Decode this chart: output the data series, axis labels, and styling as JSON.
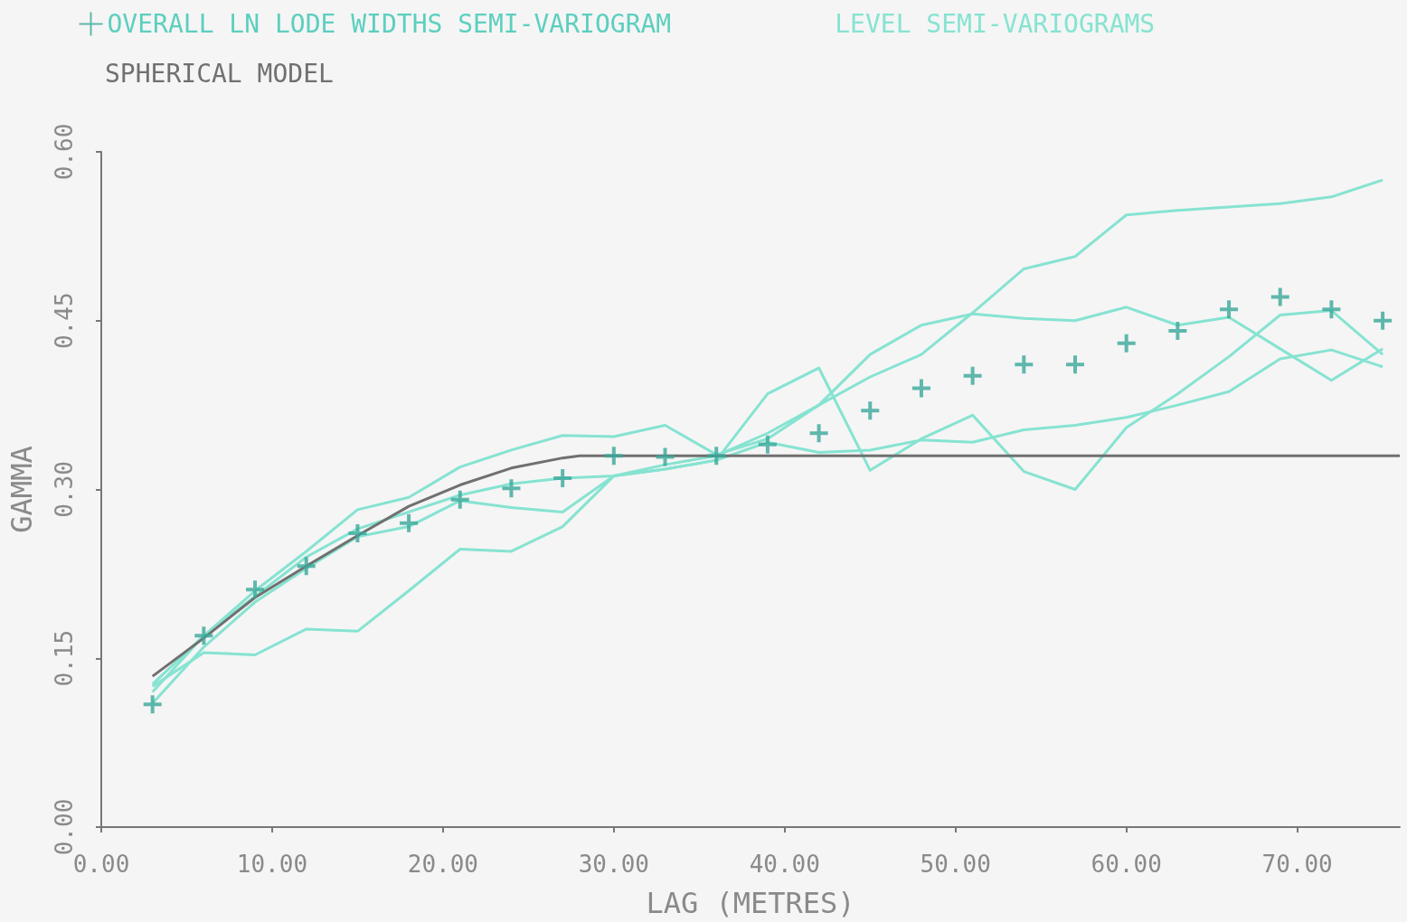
{
  "chart_data": {
    "type": "line",
    "xlabel": "LAG (METRES)",
    "ylabel": "GAMMA",
    "x": [
      3,
      6,
      9,
      12,
      15,
      18,
      21,
      24,
      27,
      30,
      33,
      36,
      39,
      42,
      45,
      48,
      51,
      54,
      57,
      60,
      63,
      66,
      69,
      72,
      75
    ],
    "xlim": [
      0,
      76
    ],
    "ylim": [
      0,
      0.6
    ],
    "xticks": [
      {
        "value": 0,
        "label": "0.00"
      },
      {
        "value": 10,
        "label": "10.00"
      },
      {
        "value": 20,
        "label": "20.00"
      },
      {
        "value": 30,
        "label": "30.00"
      },
      {
        "value": 40,
        "label": "40.00"
      },
      {
        "value": 50,
        "label": "50.00"
      },
      {
        "value": 60,
        "label": "60.00"
      },
      {
        "value": 70,
        "label": "70.00"
      }
    ],
    "yticks": [
      {
        "value": 0,
        "label": "0.00"
      },
      {
        "value": 0.15,
        "label": "0.15"
      },
      {
        "value": 0.3,
        "label": "0.30"
      },
      {
        "value": 0.45,
        "label": "0.45"
      },
      {
        "value": 0.6,
        "label": "0.60"
      }
    ],
    "grid": false,
    "legend": "top left",
    "series": [
      {
        "name": "OVERALL LN LODE WIDTHS SEMI-VARIOGRAM",
        "type": "scatter",
        "marker": "cross",
        "color": "#3aa89a",
        "values": [
          0.109,
          0.17,
          0.211,
          0.232,
          0.261,
          0.27,
          0.291,
          0.301,
          0.31,
          0.33,
          0.329,
          0.33,
          0.34,
          0.35,
          0.37,
          0.39,
          0.401,
          0.411,
          0.411,
          0.43,
          0.441,
          0.46,
          0.471,
          0.46,
          0.45
        ]
      },
      {
        "name": "LEVEL SEMI-VARIOGRAMS",
        "marker": "none",
        "color": "#86e3d1",
        "values": [
          0.125,
          0.155,
          0.153,
          0.176,
          0.174,
          0.21,
          0.247,
          0.245,
          0.267,
          0.312,
          0.318,
          0.326,
          0.385,
          0.408,
          0.317,
          0.345,
          0.366,
          0.316,
          0.3,
          0.355,
          0.385,
          0.418,
          0.455,
          0.459,
          0.42
        ]
      },
      {
        "marker": "none",
        "color": "#86e3d1",
        "values": [
          0.127,
          0.17,
          0.205,
          0.24,
          0.265,
          0.28,
          0.295,
          0.305,
          0.31,
          0.312,
          0.322,
          0.33,
          0.35,
          0.375,
          0.4,
          0.42,
          0.457,
          0.496,
          0.507,
          0.544,
          0.548,
          0.551,
          0.554,
          0.56,
          0.575
        ]
      },
      {
        "marker": "none",
        "color": "#86e3d1",
        "values": [
          0.12,
          0.17,
          0.21,
          0.245,
          0.282,
          0.293,
          0.32,
          0.335,
          0.348,
          0.347,
          0.357,
          0.331,
          0.345,
          0.375,
          0.42,
          0.446,
          0.456,
          0.452,
          0.45,
          0.462,
          0.446,
          0.453,
          0.425,
          0.397,
          0.425
        ]
      },
      {
        "marker": "none",
        "color": "#86e3d1",
        "values": [
          0.11,
          0.16,
          0.2,
          0.23,
          0.258,
          0.267,
          0.29,
          0.284,
          0.28,
          0.312,
          0.318,
          0.326,
          0.342,
          0.333,
          0.335,
          0.344,
          0.342,
          0.353,
          0.357,
          0.364,
          0.375,
          0.387,
          0.416,
          0.424,
          0.409
        ]
      },
      {
        "name": "SPHERICAL MODEL",
        "marker": "none",
        "color": "#707070",
        "x": [
          3,
          6,
          9,
          12,
          15,
          18,
          21,
          24,
          27,
          28,
          76
        ],
        "values": [
          0.134,
          0.168,
          0.204,
          0.232,
          0.259,
          0.285,
          0.304,
          0.319,
          0.328,
          0.33,
          0.33
        ]
      }
    ]
  }
}
